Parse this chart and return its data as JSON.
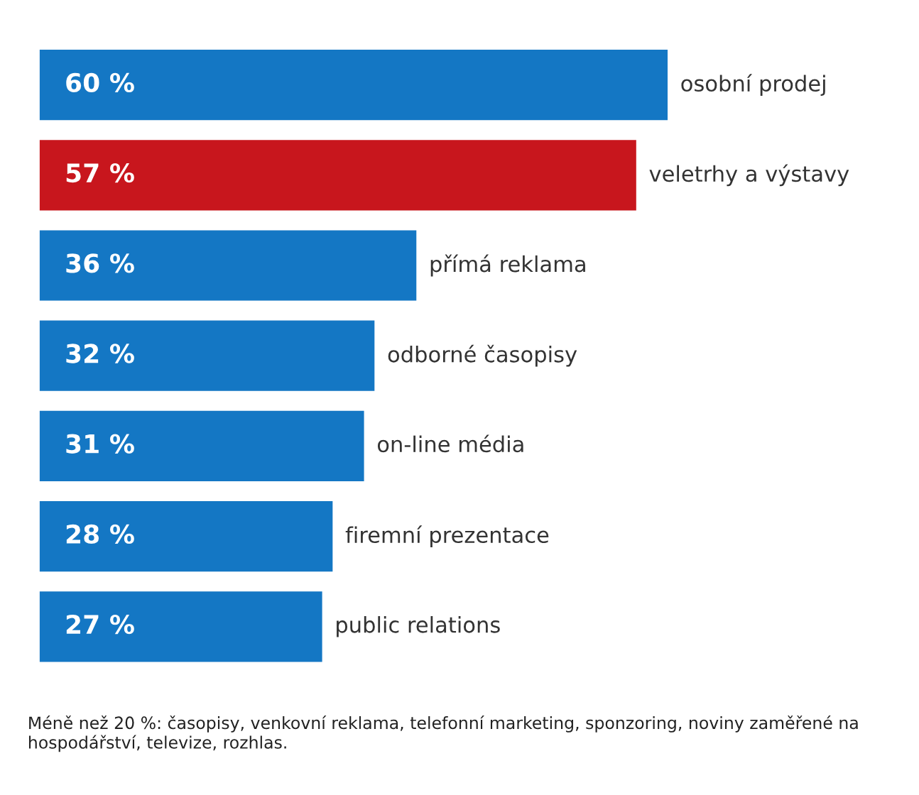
{
  "chart_data": {
    "type": "bar",
    "orientation": "horizontal",
    "categories": [
      "osobní prodej",
      "veletrhy a výstavy",
      "přímá reklama",
      "odborné časopisy",
      "on-line média",
      "firemní prezentace",
      "public relations"
    ],
    "values": [
      60,
      57,
      36,
      32,
      31,
      28,
      27
    ],
    "colors": [
      "#1477c4",
      "#c8161d",
      "#1477c4",
      "#1477c4",
      "#1477c4",
      "#1477c4",
      "#1477c4"
    ],
    "value_labels": [
      "60 %",
      "57 %",
      "36 %",
      "32 %",
      "31 %",
      "28 %",
      "27 %"
    ],
    "annotations": [
      "Méně než 20 %: časopisy, venkovní reklama, telefonní marketing, sponzoring, noviny zaměřené na hospodářství, televize, rozhlas."
    ]
  }
}
